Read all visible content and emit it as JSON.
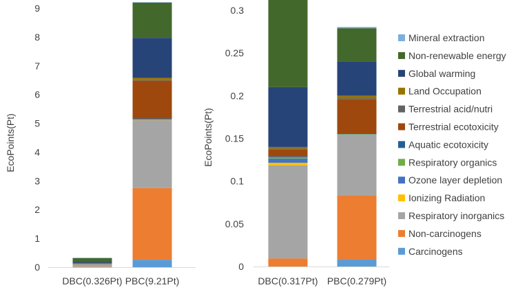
{
  "series_names": [
    "Carcinogens",
    "Non-carcinogens",
    "Respiratory inorganics",
    "Ionizing Radiation",
    "Ozone layer depletion",
    "Respiratory organics",
    "Aquatic ecotoxicity",
    "Terrestrial ecotoxicity",
    "Terrestrial acid/nutri",
    "Land Occupation",
    "Global warming",
    "Non-renewable energy",
    "Mineral extraction"
  ],
  "colors": [
    "#5b9bd5",
    "#ed7d31",
    "#a5a5a5",
    "#ffc000",
    "#4472c4",
    "#70ad47",
    "#255e91",
    "#9e480e",
    "#636363",
    "#997300",
    "#264478",
    "#43682b",
    "#7cafdd"
  ],
  "legend": {
    "placement": "right",
    "order": [
      "Mineral extraction",
      "Non-renewable energy",
      "Global warming",
      "Land Occupation",
      "Terrestrial acid/nutri",
      "Terrestrial ecotoxicity",
      "Aquatic ecotoxicity",
      "Respiratory organics",
      "Ozone layer depletion",
      "Ionizing Radiation",
      "Respiratory inorganics",
      "Non-carcinogens",
      "Carcinogens"
    ]
  },
  "chart_data": [
    {
      "type": "bar",
      "stacked": true,
      "categories": [
        "DBC(0.326Pt)",
        "PBC(9.21Pt)"
      ],
      "ylabel": "EcoPoints(Pt)",
      "ylim": [
        0,
        9
      ],
      "yticks": [
        0,
        1,
        2,
        3,
        4,
        5,
        6,
        7,
        8,
        9
      ],
      "grid": false,
      "series": [
        {
          "name": "Carcinogens",
          "values": [
            0.008,
            0.26
          ]
        },
        {
          "name": "Non-carcinogens",
          "values": [
            0.012,
            2.49
          ]
        },
        {
          "name": "Respiratory inorganics",
          "values": [
            0.1,
            2.37
          ]
        },
        {
          "name": "Ionizing Radiation",
          "values": [
            0.003,
            0.01
          ]
        },
        {
          "name": "Ozone layer depletion",
          "values": [
            0.0,
            0.0
          ]
        },
        {
          "name": "Respiratory organics",
          "values": [
            0.0,
            0.01
          ]
        },
        {
          "name": "Aquatic ecotoxicity",
          "values": [
            0.004,
            0.03
          ]
        },
        {
          "name": "Terrestrial ecotoxicity",
          "values": [
            0.02,
            1.31
          ]
        },
        {
          "name": "Terrestrial acid/nutri",
          "values": [
            0.0,
            0.02
          ]
        },
        {
          "name": "Land Occupation",
          "values": [
            0.003,
            0.08
          ]
        },
        {
          "name": "Global warming",
          "values": [
            0.06,
            1.39
          ]
        },
        {
          "name": "Non-renewable energy",
          "values": [
            0.115,
            1.23
          ]
        },
        {
          "name": "Mineral extraction",
          "values": [
            0.001,
            0.01
          ]
        }
      ]
    },
    {
      "type": "bar",
      "stacked": true,
      "categories": [
        "DBC(0.317Pt)",
        "PBC(0.279Pt)"
      ],
      "ylabel": "EcoPoints(Pt)",
      "ylim": [
        0,
        0.3
      ],
      "yticks": [
        "0",
        "0.05",
        "0.1",
        "0.15",
        "0.2",
        "0.25",
        "0.3"
      ],
      "grid": false,
      "series": [
        {
          "name": "Carcinogens",
          "values": [
            0.0,
            0.0085
          ]
        },
        {
          "name": "Non-carcinogens",
          "values": [
            0.0095,
            0.075
          ]
        },
        {
          "name": "Respiratory inorganics",
          "values": [
            0.109,
            0.071
          ]
        },
        {
          "name": "Ionizing Radiation",
          "values": [
            0.003,
            0.0
          ]
        },
        {
          "name": "Ozone layer depletion",
          "values": [
            0.005,
            0.0
          ]
        },
        {
          "name": "Respiratory organics",
          "values": [
            0.0015,
            0.0005
          ]
        },
        {
          "name": "Aquatic ecotoxicity",
          "values": [
            0.001,
            0.001
          ]
        },
        {
          "name": "Terrestrial ecotoxicity",
          "values": [
            0.008,
            0.04
          ]
        },
        {
          "name": "Terrestrial acid/nutri",
          "values": [
            0.001,
            0.001
          ]
        },
        {
          "name": "Land Occupation",
          "values": [
            0.002,
            0.003
          ]
        },
        {
          "name": "Global warming",
          "values": [
            0.07,
            0.04
          ]
        },
        {
          "name": "Non-renewable energy",
          "values": [
            0.107,
            0.039
          ]
        },
        {
          "name": "Mineral extraction",
          "values": [
            0.0015,
            0.0015
          ]
        }
      ]
    }
  ]
}
